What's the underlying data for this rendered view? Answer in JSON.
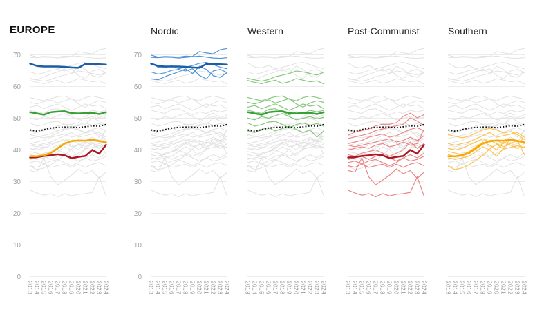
{
  "chart_data": {
    "type": "line",
    "title": "EUROPE",
    "xlabel": "",
    "ylabel": "",
    "x": [
      "2013",
      "2014",
      "2015",
      "2016",
      "2017",
      "2018",
      "2019",
      "2020",
      "2021",
      "2022",
      "2023",
      "2024"
    ],
    "y_ticks": [
      0,
      10,
      20,
      30,
      40,
      50,
      60,
      70
    ],
    "ylim": [
      0,
      75
    ],
    "grid": "horizontal",
    "legend": "none",
    "gridline_color": "#ececec",
    "background_series_color": "#e1e1e1",
    "panels": [
      {
        "id": "europe",
        "title": "EUROPE",
        "show_y_labels": true,
        "group": null
      },
      {
        "id": "nordic",
        "title": "Nordic",
        "show_y_labels": true,
        "group": "nordic"
      },
      {
        "id": "western",
        "title": "Western",
        "show_y_labels": false,
        "group": "western"
      },
      {
        "id": "post_communist",
        "title": "Post-Communist",
        "show_y_labels": false,
        "group": "post_communist"
      },
      {
        "id": "southern",
        "title": "Southern",
        "show_y_labels": false,
        "group": "southern"
      }
    ],
    "europe_average": {
      "style": "dotted",
      "color": "#141414",
      "values": [
        46.3,
        45.9,
        46.4,
        46.9,
        47.1,
        47.2,
        47.2,
        47.0,
        47.3,
        47.6,
        47.5,
        48.0
      ]
    },
    "groups": [
      {
        "id": "nordic",
        "label": "Nordic",
        "avg_color": "#1a5fa5",
        "member_color": "#4f94d8",
        "average": [
          67.2,
          66.5,
          66.3,
          66.3,
          66.3,
          66.2,
          66.0,
          65.9,
          67.1,
          67.0,
          67.0,
          66.9
        ],
        "members": [
          [
            69.9,
            69.3,
            69.5,
            69.4,
            69.3,
            69.6,
            69.5,
            71.0,
            70.6,
            70.3,
            71.6,
            72.0
          ],
          [
            69.2,
            69.1,
            69.3,
            69.2,
            69.0,
            69.2,
            69.4,
            69.6,
            69.3,
            69.0,
            68.9,
            69.1
          ],
          [
            67.4,
            66.1,
            65.9,
            66.6,
            65.6,
            66.1,
            66.6,
            67.3,
            67.6,
            66.9,
            66.1,
            65.6
          ],
          [
            64.6,
            63.9,
            64.3,
            65.1,
            65.4,
            64.9,
            65.6,
            63.5,
            62.4,
            64.9,
            65.4,
            64.4
          ],
          [
            62.4,
            62.1,
            63.1,
            63.9,
            64.6,
            65.6,
            64.1,
            66.4,
            65.4,
            63.4,
            62.9,
            64.4
          ]
        ]
      },
      {
        "id": "western",
        "label": "Western",
        "avg_color": "#35a034",
        "member_color": "#86c67c",
        "average": [
          51.9,
          51.5,
          51.1,
          51.9,
          52.1,
          52.2,
          51.6,
          51.5,
          51.6,
          51.7,
          51.3,
          51.9
        ],
        "members": [
          [
            62.6,
            62.1,
            61.7,
            62.2,
            63.1,
            63.6,
            64.1,
            64.9,
            64.6,
            64.1,
            63.6,
            64.6
          ],
          [
            61.9,
            61.3,
            60.9,
            61.5,
            62.0,
            61.0,
            61.5,
            62.5,
            62.0,
            61.5,
            61.8,
            60.8
          ],
          [
            56.5,
            56.0,
            55.5,
            56.2,
            56.8,
            57.0,
            56.0,
            55.5,
            56.5,
            57.0,
            56.5,
            56.0
          ],
          [
            55.0,
            54.5,
            55.2,
            55.8,
            54.8,
            55.5,
            56.2,
            54.5,
            53.5,
            54.8,
            55.5,
            55.0
          ],
          [
            53.5,
            54.0,
            53.0,
            53.8,
            54.5,
            53.5,
            52.5,
            53.5,
            54.5,
            53.8,
            54.2,
            53.0
          ],
          [
            52.5,
            52.0,
            51.5,
            52.8,
            53.0,
            52.0,
            51.0,
            52.0,
            51.5,
            52.5,
            52.0,
            52.5
          ],
          [
            50.0,
            49.5,
            50.5,
            50.0,
            50.8,
            51.5,
            50.5,
            49.5,
            50.0,
            50.5,
            49.8,
            50.3
          ],
          [
            48.5,
            47.5,
            48.0,
            48.8,
            49.0,
            48.0,
            47.0,
            48.0,
            48.5,
            47.8,
            48.3,
            47.5
          ],
          [
            46.0,
            45.5,
            46.5,
            47.0,
            46.0,
            46.8,
            47.5,
            46.5,
            45.5,
            46.3,
            44.0,
            46.0
          ]
        ]
      },
      {
        "id": "post_communist",
        "label": "Post-Communist",
        "avg_color": "#ab1a24",
        "member_color": "#ec8585",
        "average": [
          37.6,
          37.7,
          38.1,
          38.3,
          38.6,
          38.3,
          37.4,
          37.8,
          38.1,
          40.0,
          38.8,
          41.6
        ],
        "members": [
          [
            44.6,
            45.6,
            46.1,
            46.6,
            47.6,
            48.1,
            48.1,
            48.6,
            50.6,
            51.6,
            50.1,
            51.1
          ],
          [
            43.6,
            44.1,
            44.6,
            45.1,
            46.1,
            46.6,
            47.1,
            47.6,
            48.1,
            50.1,
            49.1,
            47.6
          ],
          [
            42.0,
            42.5,
            43.0,
            44.0,
            44.5,
            45.0,
            44.0,
            44.5,
            45.5,
            46.5,
            47.0,
            46.0
          ],
          [
            41.5,
            41.0,
            41.5,
            42.0,
            42.5,
            43.0,
            43.5,
            42.5,
            43.0,
            44.0,
            43.0,
            44.5
          ],
          [
            40.0,
            40.5,
            41.0,
            40.5,
            41.5,
            42.0,
            41.0,
            41.5,
            42.5,
            41.5,
            42.0,
            46.5
          ],
          [
            38.5,
            38.0,
            39.0,
            39.5,
            40.0,
            39.0,
            38.0,
            39.0,
            40.0,
            42.5,
            40.5,
            42.0
          ],
          [
            37.0,
            37.5,
            38.0,
            37.0,
            38.0,
            38.5,
            37.5,
            36.5,
            37.5,
            38.5,
            37.5,
            39.0
          ],
          [
            36.0,
            36.5,
            35.5,
            36.5,
            37.0,
            36.0,
            35.0,
            36.0,
            37.5,
            36.5,
            37.0,
            38.0
          ],
          [
            35.0,
            34.5,
            35.5,
            34.5,
            35.0,
            35.5,
            34.5,
            35.5,
            34.5,
            35.5,
            36.0,
            35.0
          ],
          [
            33.5,
            33.0,
            37.5,
            31.5,
            29.0,
            30.5,
            32.0,
            34.0,
            32.5,
            33.5,
            31.0,
            33.0
          ],
          [
            27.3,
            26.4,
            25.7,
            26.2,
            25.2,
            26.2,
            25.5,
            26.0,
            26.2,
            26.6,
            31.5,
            25.4
          ]
        ]
      },
      {
        "id": "southern",
        "label": "Southern",
        "avg_color": "#f6a800",
        "member_color": "#fdc24a",
        "average": [
          38.0,
          38.0,
          38.3,
          39.0,
          40.5,
          42.0,
          42.8,
          43.0,
          42.9,
          43.2,
          42.8,
          42.4
        ],
        "members": [
          [
            44.8,
            44.3,
            43.8,
            44.3,
            45.3,
            46.3,
            46.8,
            46.3,
            45.3,
            45.8,
            44.8,
            43.3
          ],
          [
            42.0,
            41.5,
            42.0,
            42.5,
            43.5,
            44.5,
            45.5,
            44.0,
            44.5,
            45.0,
            45.5,
            44.0
          ],
          [
            40.5,
            40.0,
            40.5,
            41.5,
            42.5,
            43.5,
            42.5,
            43.0,
            42.0,
            43.5,
            42.5,
            43.5
          ],
          [
            39.5,
            39.0,
            38.5,
            39.5,
            40.5,
            42.0,
            43.0,
            42.0,
            41.0,
            42.0,
            43.0,
            42.0
          ],
          [
            38.5,
            38.0,
            38.5,
            39.5,
            41.0,
            42.5,
            41.5,
            40.0,
            42.5,
            41.5,
            40.5,
            41.0
          ],
          [
            37.5,
            37.0,
            37.5,
            38.0,
            39.5,
            41.0,
            40.0,
            38.0,
            40.5,
            43.5,
            43.0,
            38.5
          ],
          [
            34.8,
            33.8,
            34.3,
            35.3,
            36.8,
            38.3,
            40.3,
            41.8,
            40.3,
            40.8,
            41.3,
            40.8
          ]
        ]
      }
    ]
  }
}
